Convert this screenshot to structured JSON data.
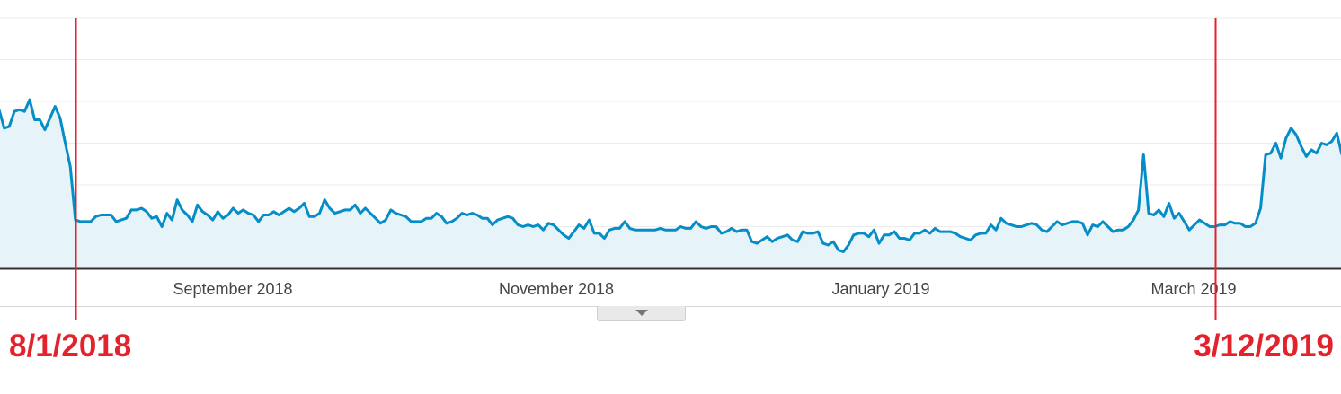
{
  "chart_data": {
    "type": "area",
    "x_axis": {
      "ticks": [
        "September 2018",
        "November 2018",
        "January 2019",
        "March 2019"
      ]
    },
    "grid": true,
    "series": [
      {
        "values": [
          95,
          84,
          85,
          94,
          95,
          94,
          101,
          89,
          89,
          83,
          90,
          97,
          90,
          75,
          61,
          29,
          28,
          28,
          28,
          31,
          32,
          32,
          32,
          28,
          29,
          30,
          35,
          35,
          36,
          34,
          30,
          31,
          25,
          33,
          29,
          41,
          35,
          32,
          28,
          38,
          34,
          32,
          29,
          34,
          30,
          32,
          36,
          33,
          35,
          33,
          32,
          28,
          32,
          32,
          34,
          32,
          34,
          36,
          34,
          36,
          39,
          31,
          31,
          33,
          41,
          36,
          33,
          34,
          35,
          35,
          38,
          33,
          36,
          33,
          30,
          27,
          29,
          35,
          33,
          32,
          31,
          28,
          28,
          28,
          30,
          30,
          33,
          31,
          27,
          28,
          30,
          33,
          32,
          33,
          32,
          30,
          30,
          26,
          29,
          30,
          31,
          30,
          26,
          25,
          26,
          25,
          26,
          23,
          27,
          26,
          23,
          20,
          18,
          22,
          26,
          24,
          29,
          21,
          21,
          18,
          23,
          24,
          24,
          28,
          24,
          23,
          23,
          23,
          23,
          23,
          24,
          23,
          23,
          23,
          25,
          24,
          24,
          28,
          25,
          24,
          25,
          25,
          21,
          22,
          24,
          22,
          23,
          23,
          16,
          15,
          17,
          19,
          16,
          18,
          19,
          20,
          17,
          16,
          22,
          21,
          21,
          22,
          15,
          14,
          16,
          11,
          10,
          14,
          20,
          21,
          21,
          19,
          23,
          15,
          20,
          20,
          22,
          18,
          18,
          17,
          21,
          21,
          23,
          21,
          24,
          22,
          22,
          22,
          21,
          19,
          18,
          17,
          20,
          21,
          21,
          26,
          23,
          30,
          27,
          26,
          25,
          25,
          26,
          27,
          26,
          23,
          22,
          25,
          28,
          26,
          27,
          28,
          28,
          27,
          20,
          26,
          25,
          28,
          25,
          22,
          23,
          23,
          25,
          29,
          35,
          68,
          33,
          32,
          35,
          31,
          39,
          30,
          33,
          28,
          23,
          26,
          29,
          27,
          25,
          25,
          26,
          26,
          28,
          27,
          27,
          25,
          25,
          27,
          36,
          68,
          69,
          75,
          66,
          78,
          84,
          80,
          73,
          67,
          71,
          69,
          75,
          74,
          76,
          81,
          68
        ],
        "color": "#058dc7",
        "fill": "#e6f3f9"
      }
    ],
    "annotations": [
      {
        "label": "8/1/2018",
        "index": 15,
        "color": "#e3222b"
      },
      {
        "label": "3/12/2019",
        "index": 239,
        "color": "#e3222b"
      }
    ],
    "ylim": [
      0,
      150
    ],
    "legend": "none"
  },
  "controls": {
    "expand_toggle_icon": "chevron-down-icon"
  }
}
